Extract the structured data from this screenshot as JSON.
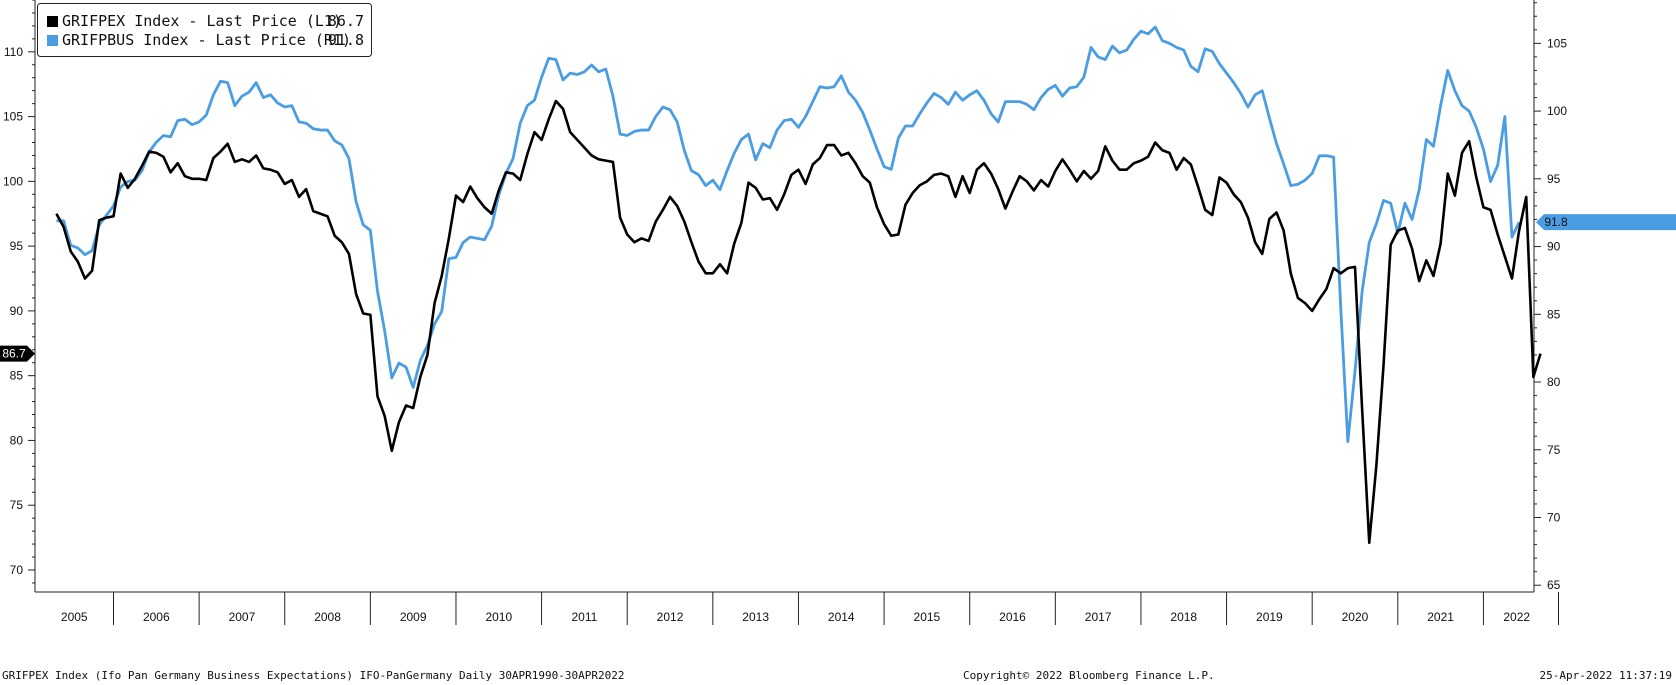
{
  "chart_data": {
    "type": "line",
    "x_start": "2004-05",
    "x_freq": "monthly",
    "years": [
      "2005",
      "2006",
      "2007",
      "2008",
      "2009",
      "2010",
      "2011",
      "2012",
      "2013",
      "2014",
      "2015",
      "2016",
      "2017",
      "2018",
      "2019",
      "2020",
      "2021",
      "2022"
    ],
    "left_axis": {
      "ylim": [
        68.3,
        114
      ],
      "ticks": [
        70,
        75,
        80,
        85,
        90,
        95,
        100,
        105,
        110
      ]
    },
    "right_axis": {
      "ylim": [
        64.5,
        108.2
      ],
      "ticks": [
        65,
        70,
        75,
        80,
        85,
        90,
        95,
        100,
        105
      ]
    },
    "legend": {
      "placement": "top-left"
    },
    "grid": false,
    "series": [
      {
        "name": "GRIFPEX Index - Last Price (L1)",
        "axis": "left",
        "color": "#000000",
        "last_value": "86.7",
        "values": [
          97.5,
          96.5,
          94.6,
          93.8,
          92.5,
          93.1,
          97.0,
          97.2,
          97.3,
          100.6,
          99.5,
          100.2,
          101.2,
          102.3,
          102.2,
          101.9,
          100.7,
          101.4,
          100.4,
          100.2,
          100.2,
          100.1,
          101.8,
          102.3,
          102.9,
          101.5,
          101.7,
          101.5,
          102.0,
          101.0,
          100.9,
          100.7,
          99.8,
          100.1,
          98.8,
          99.4,
          97.7,
          97.5,
          97.3,
          95.8,
          95.3,
          94.4,
          91.3,
          89.8,
          89.7,
          83.4,
          81.9,
          79.2,
          81.4,
          82.7,
          82.5,
          84.9,
          86.6,
          90.6,
          92.7,
          95.6,
          98.9,
          98.4,
          99.6,
          98.7,
          98.0,
          97.5,
          99.3,
          100.7,
          100.6,
          100.1,
          102.1,
          103.8,
          103.2,
          104.8,
          106.2,
          105.6,
          103.8,
          103.2,
          102.6,
          102.0,
          101.7,
          101.6,
          101.5,
          97.2,
          95.9,
          95.3,
          95.6,
          95.4,
          96.9,
          97.8,
          98.8,
          98.1,
          96.9,
          95.3,
          93.8,
          92.9,
          92.9,
          93.6,
          92.9,
          95.2,
          96.8,
          99.9,
          99.5,
          98.6,
          98.7,
          97.8,
          99.0,
          100.5,
          100.9,
          99.8,
          101.3,
          101.8,
          102.8,
          102.8,
          102.0,
          102.2,
          101.4,
          100.4,
          99.9,
          98.0,
          96.7,
          95.8,
          95.9,
          98.2,
          99.1,
          99.7,
          100.0,
          100.5,
          100.6,
          100.4,
          98.8,
          100.4,
          99.1,
          100.9,
          101.4,
          100.6,
          99.4,
          97.9,
          99.2,
          100.4,
          100.0,
          99.3,
          100.1,
          99.6,
          100.8,
          101.7,
          100.9,
          100.0,
          100.8,
          100.2,
          100.8,
          102.7,
          101.6,
          100.9,
          100.9,
          101.4,
          101.6,
          101.9,
          103.0,
          102.4,
          102.2,
          100.9,
          101.8,
          101.3,
          99.6,
          97.8,
          97.4,
          100.3,
          99.9,
          99.0,
          98.4,
          97.2,
          95.3,
          94.4,
          97.1,
          97.6,
          96.2,
          92.9,
          91.0,
          90.6,
          90.0,
          90.9,
          91.7,
          93.3,
          92.9,
          93.3,
          93.4,
          82.4,
          72.1,
          78.1,
          85.8,
          95.1,
          96.2,
          96.4,
          94.8,
          92.3,
          93.9,
          92.7,
          95.2,
          100.6,
          98.9,
          102.2,
          103.1,
          100.3,
          98.0,
          97.8,
          95.9,
          94.2,
          92.5,
          96.2,
          98.8,
          84.9,
          86.7
        ]
      },
      {
        "name": "GRIFPBUS Index - Last Price (R1)",
        "axis": "right",
        "color": "#4a9de3",
        "last_value": "91.8",
        "values": [
          91.9,
          91.9,
          90.1,
          89.9,
          89.4,
          89.7,
          91.6,
          92.3,
          93.0,
          94.4,
          94.8,
          94.9,
          95.6,
          97.0,
          97.7,
          98.2,
          98.1,
          99.3,
          99.4,
          99.0,
          99.2,
          99.7,
          101.2,
          102.2,
          102.1,
          100.4,
          101.1,
          101.4,
          102.1,
          101.0,
          101.2,
          100.6,
          100.3,
          100.4,
          99.2,
          99.1,
          98.7,
          98.6,
          98.6,
          97.8,
          97.5,
          96.5,
          93.3,
          91.6,
          91.2,
          86.7,
          83.8,
          80.3,
          81.4,
          81.1,
          79.6,
          81.6,
          82.7,
          84.3,
          85.2,
          89.1,
          89.2,
          90.3,
          90.7,
          90.6,
          90.5,
          91.5,
          93.8,
          95.4,
          96.5,
          99.1,
          100.4,
          100.8,
          102.5,
          103.9,
          103.8,
          102.3,
          102.8,
          102.7,
          102.9,
          103.4,
          102.9,
          103.1,
          101.1,
          98.3,
          98.2,
          98.5,
          98.6,
          98.6,
          99.6,
          100.3,
          100.1,
          99.2,
          97.1,
          95.6,
          95.3,
          94.5,
          94.9,
          94.2,
          95.6,
          96.9,
          97.9,
          98.3,
          96.4,
          97.6,
          97.3,
          98.6,
          99.3,
          99.4,
          98.8,
          99.6,
          100.7,
          101.8,
          101.7,
          101.8,
          102.6,
          101.4,
          100.8,
          99.9,
          98.6,
          97.2,
          95.9,
          95.7,
          98.0,
          98.9,
          98.9,
          99.8,
          100.6,
          101.3,
          101.0,
          100.5,
          101.4,
          100.8,
          101.2,
          101.5,
          100.8,
          99.8,
          99.2,
          100.7,
          100.7,
          100.7,
          100.5,
          100.1,
          101.0,
          101.6,
          101.9,
          101.1,
          101.7,
          101.8,
          102.5,
          104.7,
          104.0,
          103.8,
          104.8,
          104.3,
          104.5,
          105.3,
          105.9,
          105.7,
          106.2,
          105.2,
          105.0,
          104.7,
          104.5,
          103.3,
          102.9,
          104.6,
          104.4,
          103.5,
          102.8,
          102.1,
          101.3,
          100.3,
          101.2,
          101.5,
          99.5,
          97.6,
          96.1,
          94.5,
          94.6,
          94.9,
          95.4,
          96.7,
          96.7,
          96.6,
          85.5,
          75.6,
          80.8,
          86.7,
          90.3,
          91.7,
          93.4,
          93.2,
          91.0,
          93.2,
          92.0,
          94.2,
          97.9,
          97.4,
          100.4,
          103.0,
          101.5,
          100.4,
          100.0,
          98.8,
          97.2,
          94.8,
          96.0,
          99.6,
          90.7,
          91.8
        ]
      }
    ]
  },
  "footer": {
    "left": "GRIFPEX Index (Ifo Pan Germany Business Expectations) IFO-PanGermany  Daily 30APR1990-30APR2022",
    "center": "Copyright© 2022 Bloomberg Finance L.P.",
    "right": "25-Apr-2022 11:37:19"
  }
}
